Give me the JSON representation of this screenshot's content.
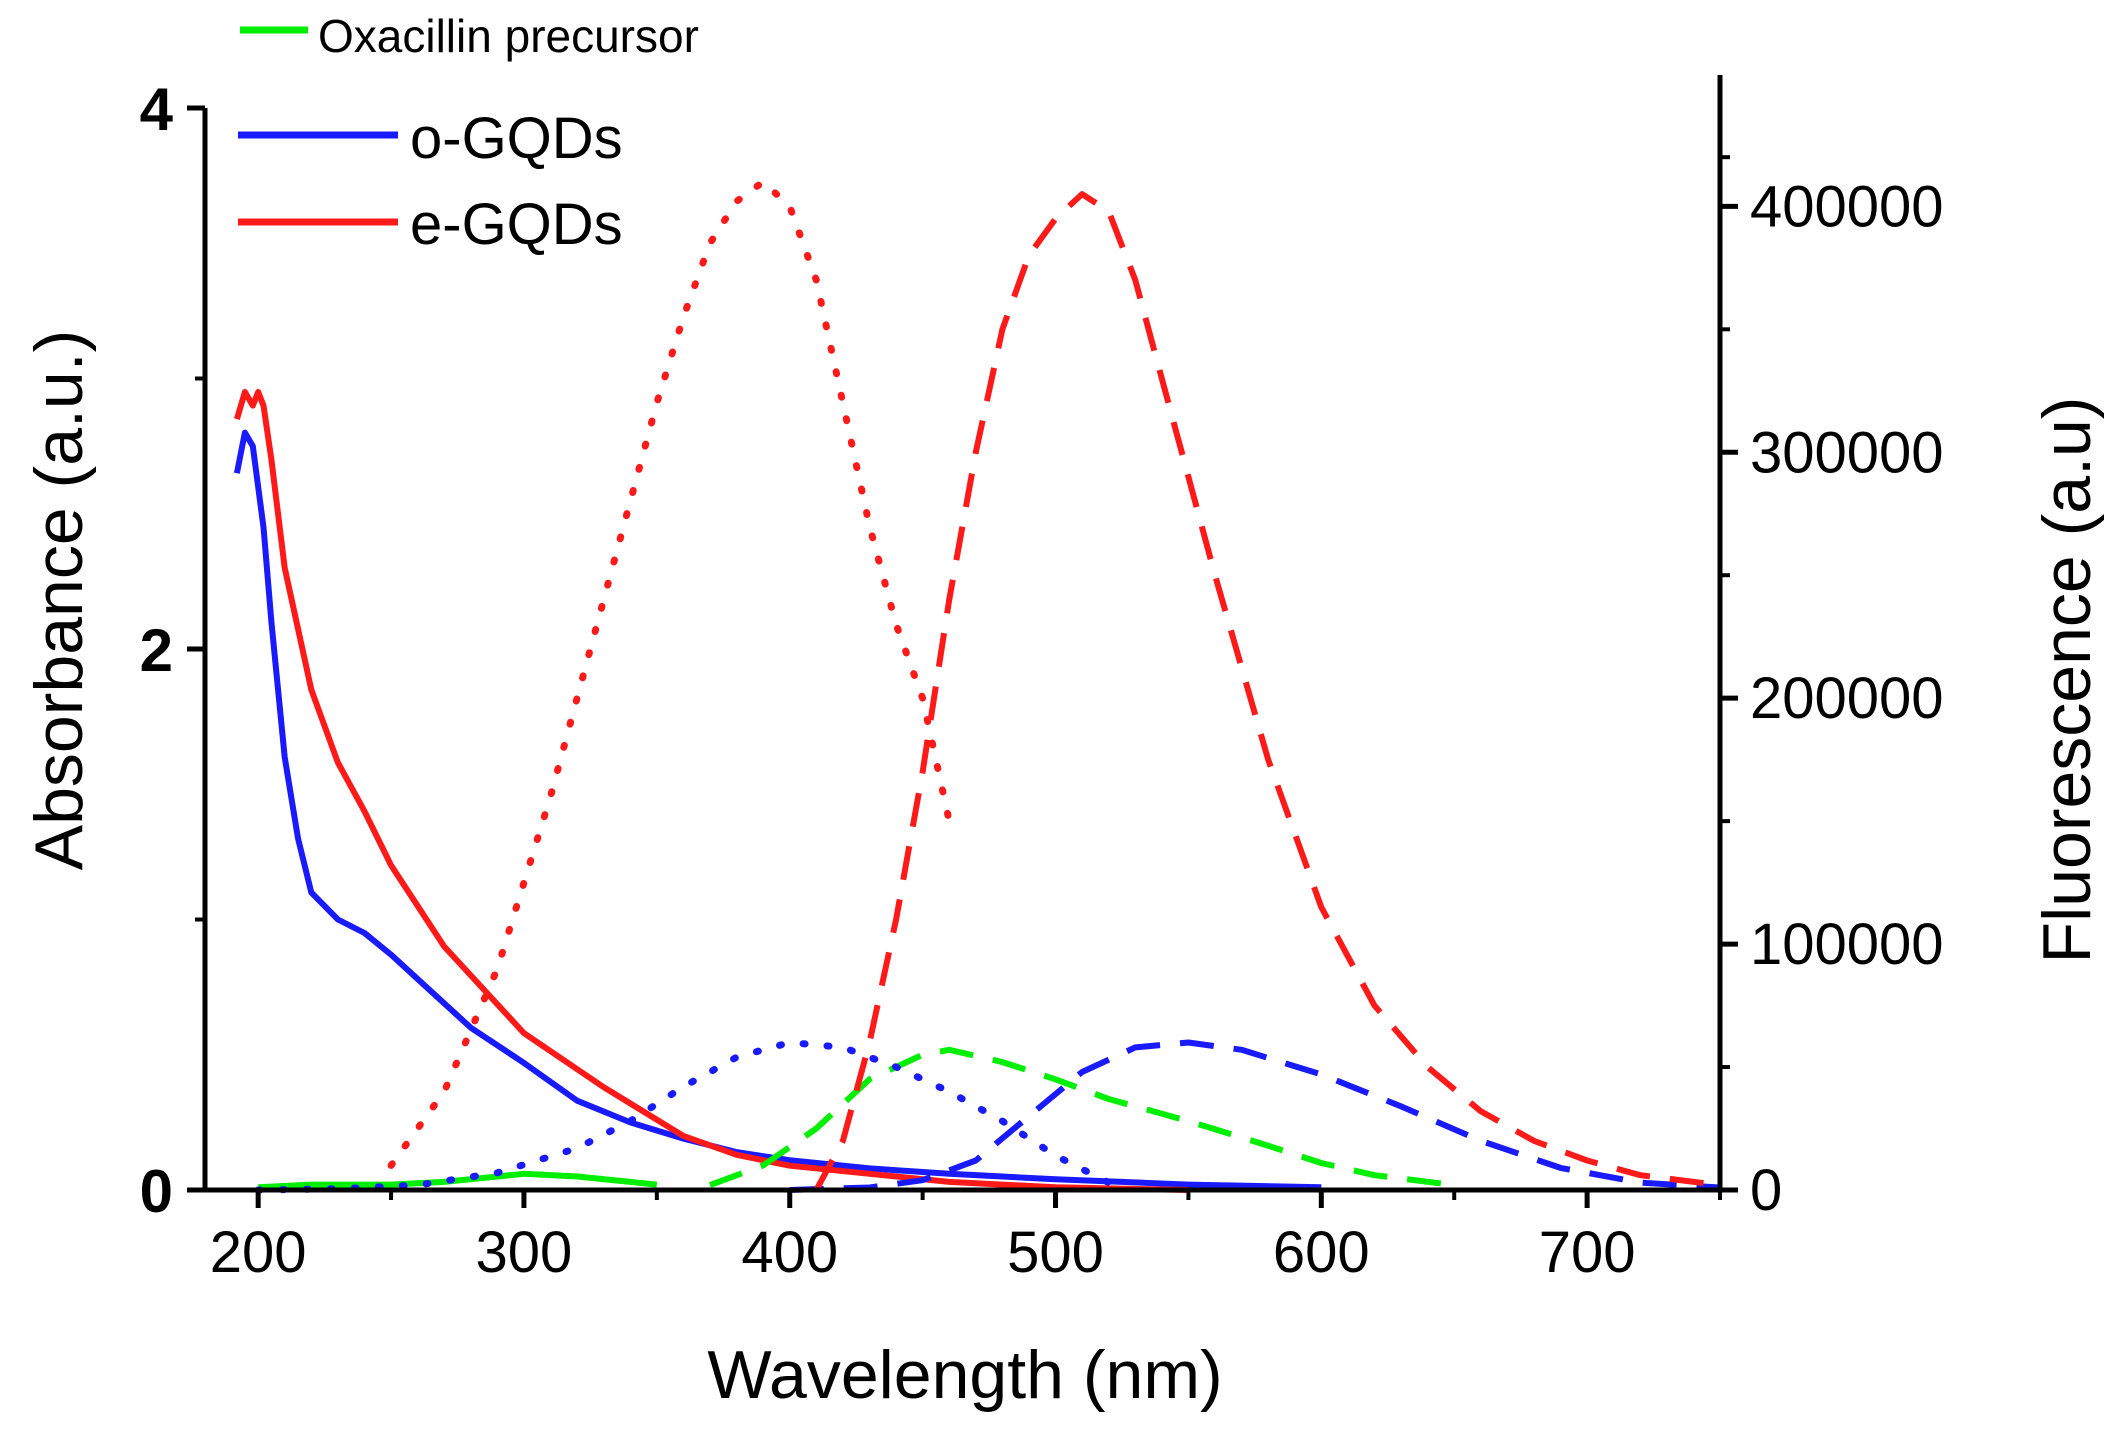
{
  "chart_data": {
    "type": "line",
    "title": "",
    "xlabel": "Wavelength (nm)",
    "ylabel": "Absorbance (a.u.)",
    "y2label": "Fluorescence (a.u)",
    "xlim": [
      180,
      750
    ],
    "ylim": [
      0,
      4
    ],
    "y2lim": [
      0,
      440000
    ],
    "xticks": [
      "200",
      "300",
      "400",
      "500",
      "600",
      "700"
    ],
    "yticks": [
      "0",
      "2",
      "4"
    ],
    "y2ticks": [
      "0",
      "100000",
      "200000",
      "300000",
      "400000"
    ],
    "legend": [
      {
        "label": "Oxacillin precursor",
        "color": "#00ee00"
      },
      {
        "label": "o-GQDs",
        "color": "#1a1aff"
      },
      {
        "label": "e-GQDs",
        "color": "#ff1a1a"
      }
    ],
    "series": [
      {
        "name": "Oxacillin precursor absorbance",
        "axis": "left",
        "style": "solid",
        "color": "#00ee00",
        "x": [
          200,
          220,
          250,
          270,
          290,
          300,
          320,
          340,
          350
        ],
        "y": [
          0.01,
          0.02,
          0.02,
          0.03,
          0.05,
          0.06,
          0.05,
          0.03,
          0.02
        ]
      },
      {
        "name": "o-GQDs absorbance",
        "axis": "left",
        "style": "solid",
        "color": "#1a1aff",
        "x": [
          192,
          195,
          198,
          202,
          205,
          210,
          215,
          220,
          230,
          240,
          250,
          260,
          280,
          300,
          320,
          340,
          360,
          380,
          400,
          430,
          460,
          500,
          550,
          600
        ],
        "y": [
          2.65,
          2.8,
          2.75,
          2.45,
          2.1,
          1.6,
          1.3,
          1.1,
          1.0,
          0.95,
          0.87,
          0.78,
          0.6,
          0.47,
          0.33,
          0.25,
          0.19,
          0.14,
          0.11,
          0.08,
          0.06,
          0.04,
          0.02,
          0.01
        ]
      },
      {
        "name": "e-GQDs absorbance",
        "axis": "left",
        "style": "solid",
        "color": "#ff1a1a",
        "x": [
          192,
          195,
          198,
          200,
          202,
          205,
          210,
          220,
          230,
          240,
          250,
          270,
          300,
          330,
          360,
          380,
          400,
          430,
          460,
          500,
          550
        ],
        "y": [
          2.85,
          2.95,
          2.9,
          2.95,
          2.9,
          2.7,
          2.3,
          1.85,
          1.58,
          1.4,
          1.2,
          0.9,
          0.58,
          0.38,
          0.2,
          0.13,
          0.09,
          0.06,
          0.03,
          0.01,
          0.0
        ]
      },
      {
        "name": "Oxacillin precursor fluorescence",
        "axis": "right",
        "style": "dashed",
        "color": "#00ee00",
        "x": [
          370,
          390,
          410,
          430,
          450,
          460,
          480,
          500,
          520,
          550,
          580,
          600,
          620,
          650
        ],
        "y": [
          2000,
          10000,
          25000,
          45000,
          55000,
          57000,
          52000,
          45000,
          37000,
          28000,
          18000,
          11000,
          6000,
          2000
        ]
      },
      {
        "name": "o-GQDs fluorescence (dashed)",
        "axis": "right",
        "style": "dashed",
        "color": "#1a1aff",
        "x": [
          400,
          430,
          450,
          470,
          490,
          510,
          530,
          550,
          570,
          600,
          630,
          660,
          690,
          720,
          750
        ],
        "y": [
          0,
          1000,
          4000,
          12000,
          30000,
          48000,
          58000,
          60000,
          57000,
          47000,
          34000,
          20000,
          9000,
          3000,
          1000
        ]
      },
      {
        "name": "o-GQDs fluorescence (dotted)",
        "axis": "right",
        "style": "dotted",
        "color": "#1a1aff",
        "x": [
          200,
          230,
          260,
          290,
          320,
          340,
          360,
          380,
          400,
          420,
          440,
          460,
          480,
          500,
          520
        ],
        "y": [
          0,
          500,
          2000,
          7000,
          17000,
          28000,
          42000,
          54000,
          60000,
          58000,
          50000,
          40000,
          28000,
          14000,
          3000
        ]
      },
      {
        "name": "e-GQDs fluorescence (dashed)",
        "axis": "right",
        "style": "dashed",
        "color": "#ff1a1a",
        "x": [
          410,
          420,
          430,
          440,
          450,
          460,
          470,
          480,
          490,
          500,
          510,
          520,
          530,
          540,
          560,
          580,
          600,
          620,
          640,
          660,
          680,
          700,
          720,
          750
        ],
        "y": [
          0,
          20000,
          60000,
          110000,
          170000,
          240000,
          300000,
          350000,
          380000,
          395000,
          405000,
          398000,
          370000,
          330000,
          250000,
          175000,
          115000,
          75000,
          50000,
          32000,
          20000,
          12000,
          6000,
          2000
        ]
      },
      {
        "name": "e-GQDs fluorescence (dotted)",
        "axis": "right",
        "style": "dotted",
        "color": "#ff1a1a",
        "x": [
          250,
          270,
          290,
          310,
          330,
          350,
          360,
          370,
          380,
          390,
          400,
          410,
          420,
          430,
          440,
          450,
          460
        ],
        "y": [
          10000,
          40000,
          90000,
          160000,
          240000,
          320000,
          355000,
          385000,
          402000,
          410000,
          400000,
          370000,
          320000,
          270000,
          230000,
          200000,
          150000
        ]
      }
    ]
  }
}
